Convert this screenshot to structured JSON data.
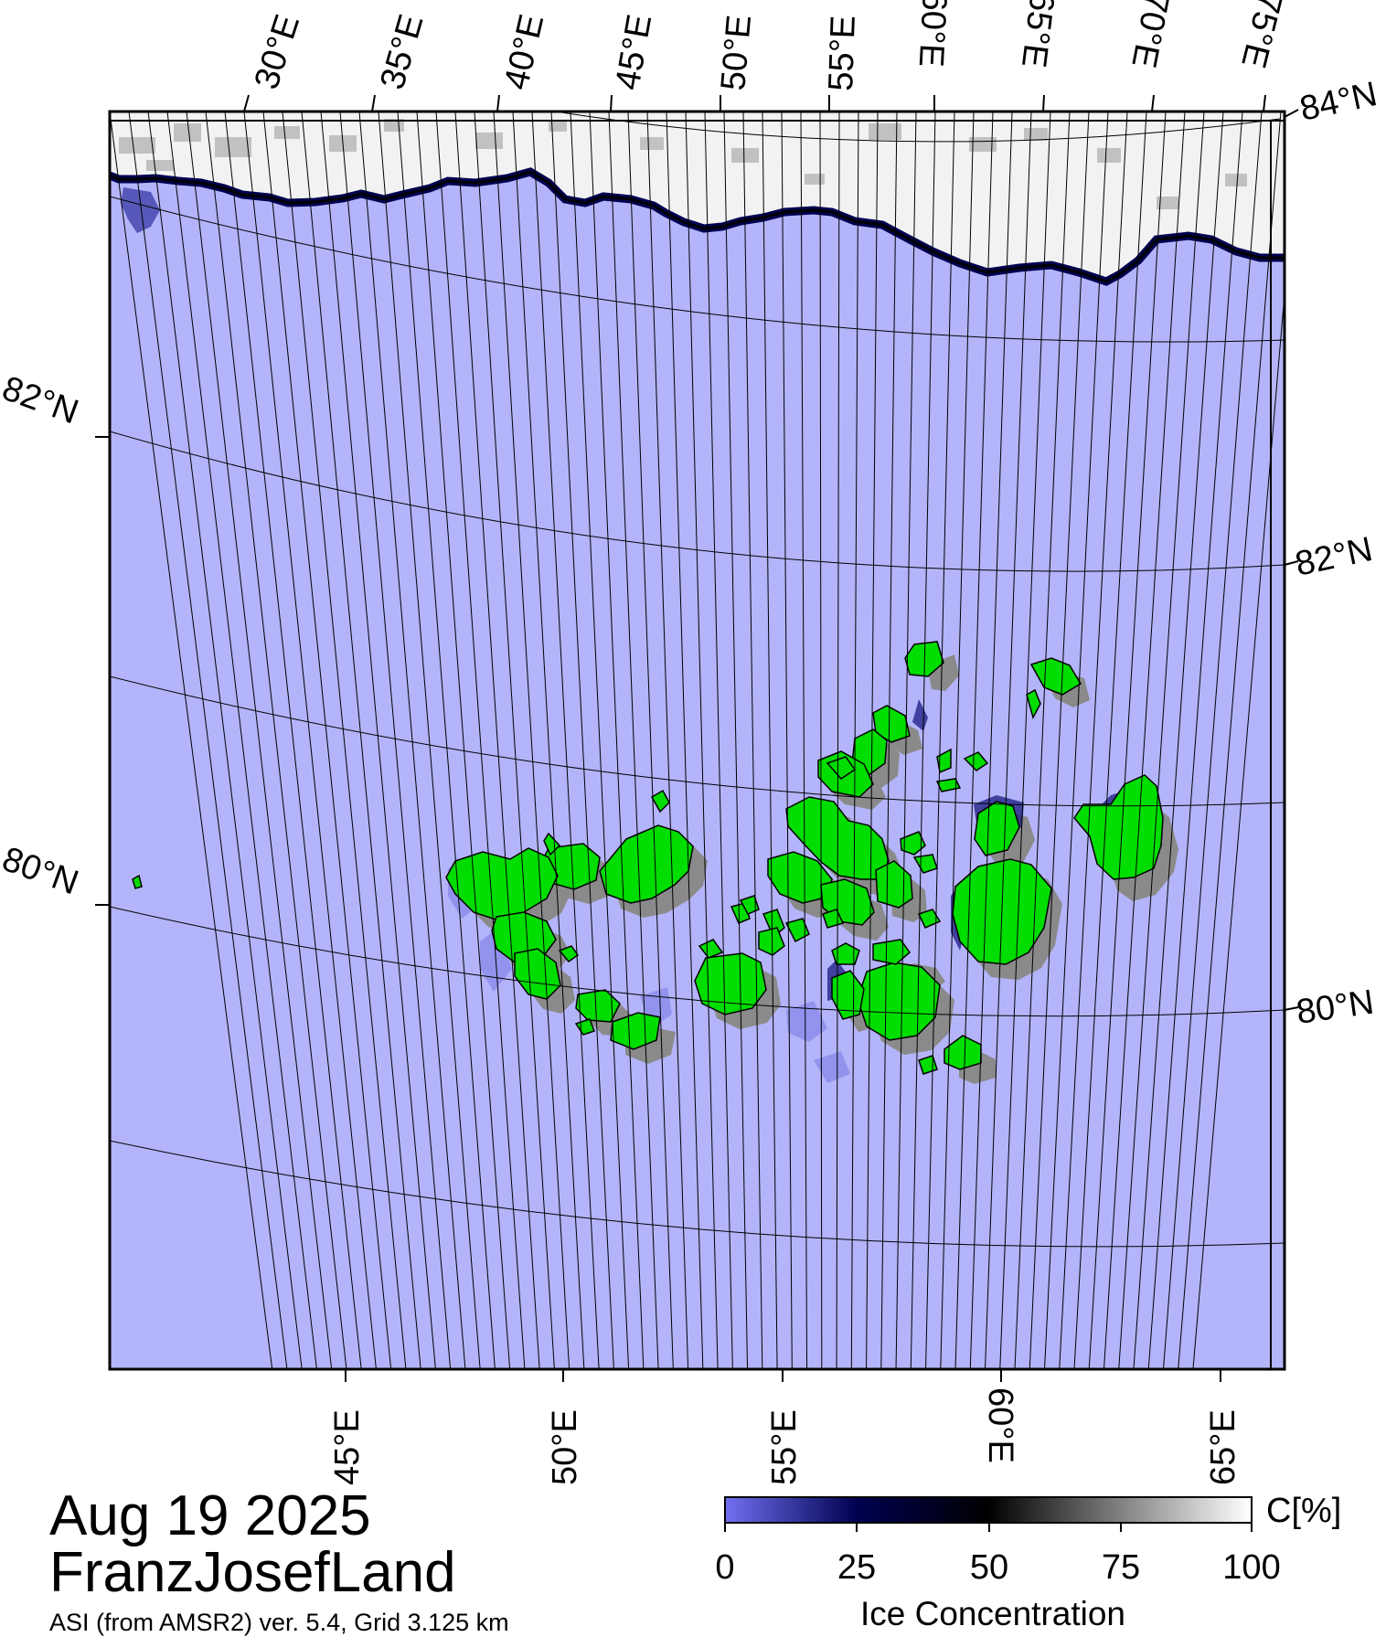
{
  "map": {
    "date": "Aug 19 2025",
    "region": "FranzJosefLand",
    "source": "ASI (from AMSR2) ver. 5.4,  Grid 3.125 km",
    "top_lon_labels": [
      "30°E",
      "35°E",
      "40°E",
      "45°E",
      "50°E",
      "55°E",
      "60°E",
      "65°E",
      "70°E",
      "75°E"
    ],
    "bottom_lon_labels": [
      "45°E",
      "50°E",
      "55°E",
      "60°E",
      "65°E"
    ],
    "lat_labels": {
      "top_right": "84°N",
      "left_upper": "82°N",
      "right_upper": "82°N",
      "left_lower": "80°N",
      "right_lower": "80°N"
    },
    "colors": {
      "open_water": "#b4b4fa",
      "land": "#00dd00",
      "land_shadow": "#8a8a8a",
      "ice_edge_dark": "#000050",
      "ice_high": "#ffffff"
    }
  },
  "colorbar": {
    "title": "Ice Concentration",
    "unit": "C[%]",
    "ticks": [
      "0",
      "25",
      "50",
      "75",
      "100"
    ],
    "stops": [
      "#7070f0",
      "#000050",
      "#000000",
      "#808080",
      "#ffffff"
    ]
  }
}
